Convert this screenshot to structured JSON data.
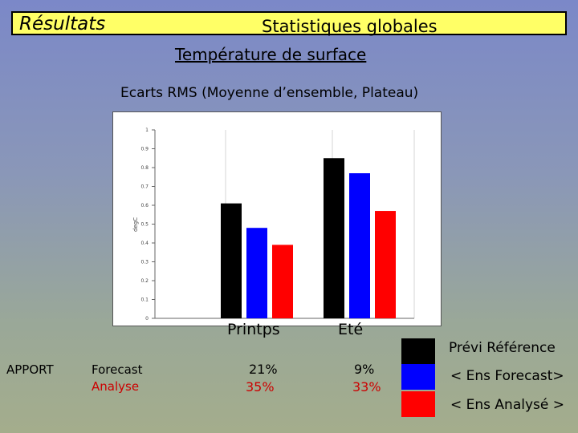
{
  "header": {
    "section": "Résultats",
    "title": "Statistiques globales",
    "subtitle": "Température de surface"
  },
  "chart_data": {
    "type": "bar",
    "title": "Ecarts RMS (Moyenne d’ensemble, Plateau)",
    "ylabel": "degC",
    "ylim": [
      0,
      1
    ],
    "yticks": [
      0,
      0.1,
      0.2,
      0.3,
      0.4,
      0.5,
      0.6,
      0.7,
      0.8,
      0.9,
      1
    ],
    "categories": [
      "Printps",
      "Eté"
    ],
    "series": [
      {
        "name": "Prévi Référence",
        "color": "#000000",
        "values": [
          0.61,
          0.85
        ]
      },
      {
        "name": "< Ens Forecast>",
        "color": "#0000ff",
        "values": [
          0.48,
          0.77
        ]
      },
      {
        "name": "< Ens Analysé >",
        "color": "#ff0000",
        "values": [
          0.39,
          0.57
        ]
      }
    ],
    "grid": true,
    "legend": "right"
  },
  "apport": {
    "label": "APPORT",
    "rows": [
      {
        "name": "Forecast",
        "values": [
          "21%",
          "9%"
        ]
      },
      {
        "name": "Analyse",
        "values": [
          "35%",
          "33%"
        ]
      }
    ]
  }
}
